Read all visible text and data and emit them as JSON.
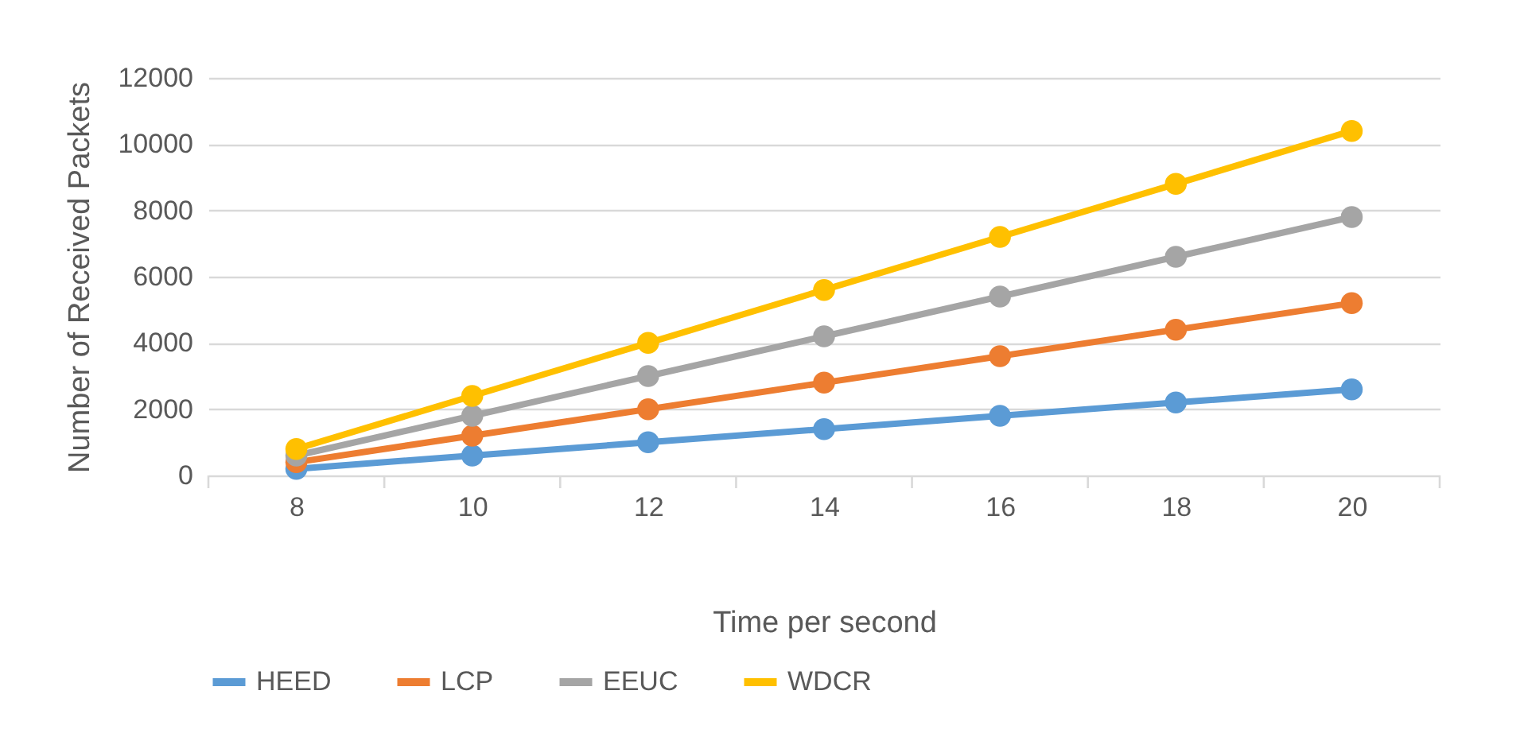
{
  "chart_data": {
    "type": "line",
    "xlabel": "Time per second",
    "ylabel": "Number of Received Packets",
    "categories": [
      "8",
      "10",
      "12",
      "14",
      "16",
      "18",
      "20"
    ],
    "series": [
      {
        "name": "HEED",
        "color": "#5b9bd5",
        "values": [
          200,
          600,
          1000,
          1400,
          1800,
          2200,
          2600
        ]
      },
      {
        "name": "LCP",
        "color": "#ed7d31",
        "values": [
          400,
          1200,
          2000,
          2800,
          3600,
          4400,
          5200
        ]
      },
      {
        "name": "EEUC",
        "color": "#a5a5a5",
        "values": [
          600,
          1800,
          3000,
          4200,
          5400,
          6600,
          7800
        ]
      },
      {
        "name": "WDCR",
        "color": "#ffc000",
        "values": [
          800,
          2400,
          4000,
          5600,
          7200,
          8800,
          10400
        ]
      }
    ],
    "ylim": [
      0,
      12000
    ],
    "yticks": [
      0,
      2000,
      4000,
      6000,
      8000,
      10000,
      12000
    ],
    "grid": "y",
    "legend": "bottom",
    "marker": "circle",
    "line_style": "solid"
  }
}
